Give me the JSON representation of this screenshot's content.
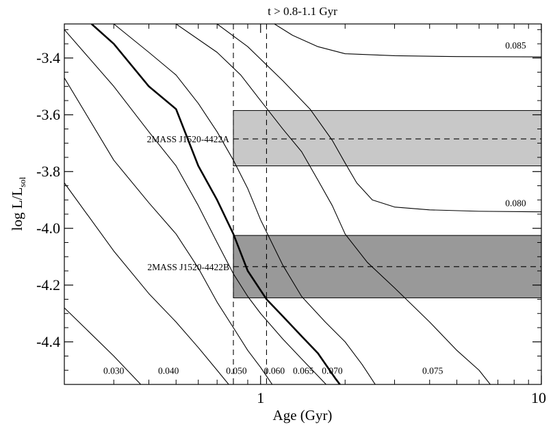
{
  "chart_data": {
    "type": "line",
    "title": "t > 0.8-1.1 Gyr",
    "xlabel": "Age (Gyr)",
    "ylabel": "log L/L",
    "ylabel_sub": "sol",
    "x_scale": "log",
    "xlim": [
      0.2,
      10
    ],
    "ylim": [
      -4.55,
      -3.28
    ],
    "x_major_ticks": [
      {
        "value": 1,
        "label": "1"
      },
      {
        "value": 10,
        "label": "10"
      }
    ],
    "y_ticks": [
      {
        "value": -3.4,
        "label": "-3.4"
      },
      {
        "value": -3.6,
        "label": "-3.6"
      },
      {
        "value": -3.8,
        "label": "-3.8"
      },
      {
        "value": -4.0,
        "label": "-4.0"
      },
      {
        "value": -4.2,
        "label": "-4.2"
      },
      {
        "value": -4.4,
        "label": "-4.4"
      }
    ],
    "grid": false,
    "age_limits": [
      0.8,
      1.05
    ],
    "objects": [
      {
        "name": "2MASS J1520-4422A",
        "logL": -3.685,
        "logL_min": -3.78,
        "logL_max": -3.585,
        "fill": "#c8c8c8"
      },
      {
        "name": "2MASS J1520-4422B",
        "logL": -4.135,
        "logL_min": -4.245,
        "logL_max": -4.025,
        "fill": "#999999"
      }
    ],
    "tracks": [
      {
        "label": "0.030",
        "bold": false,
        "label_at": [
          0.3,
          -4.5
        ],
        "points": [
          [
            0.2,
            -4.28
          ],
          [
            0.3,
            -4.45
          ],
          [
            0.4,
            -4.58
          ]
        ]
      },
      {
        "label": "0.040",
        "bold": false,
        "label_at": [
          0.47,
          -4.5
        ],
        "points": [
          [
            0.2,
            -3.84
          ],
          [
            0.3,
            -4.08
          ],
          [
            0.4,
            -4.23
          ],
          [
            0.5,
            -4.33
          ],
          [
            0.6,
            -4.42
          ],
          [
            0.7,
            -4.5
          ],
          [
            0.8,
            -4.57
          ]
        ]
      },
      {
        "label": "0.050",
        "bold": false,
        "label_at": [
          0.82,
          -4.5
        ],
        "points": [
          [
            0.2,
            -3.47
          ],
          [
            0.3,
            -3.76
          ],
          [
            0.4,
            -3.91
          ],
          [
            0.5,
            -4.02
          ],
          [
            0.6,
            -4.14
          ],
          [
            0.7,
            -4.26
          ],
          [
            0.8,
            -4.35
          ],
          [
            0.9,
            -4.43
          ],
          [
            1.0,
            -4.49
          ],
          [
            1.1,
            -4.55
          ],
          [
            1.15,
            -4.58
          ]
        ]
      },
      {
        "label": "0.060",
        "bold": false,
        "label_at": [
          1.12,
          -4.5
        ],
        "points": [
          [
            0.2,
            -3.3
          ],
          [
            0.3,
            -3.5
          ],
          [
            0.4,
            -3.66
          ],
          [
            0.5,
            -3.78
          ],
          [
            0.6,
            -3.92
          ],
          [
            0.7,
            -4.05
          ],
          [
            0.8,
            -4.16
          ],
          [
            0.9,
            -4.24
          ],
          [
            1.0,
            -4.3
          ],
          [
            1.2,
            -4.39
          ],
          [
            1.4,
            -4.46
          ],
          [
            1.6,
            -4.52
          ],
          [
            1.75,
            -4.56
          ]
        ]
      },
      {
        "label": "0.065",
        "bold": true,
        "label_at": [
          1.42,
          -4.5
        ],
        "points": [
          [
            0.25,
            -3.28
          ],
          [
            0.3,
            -3.35
          ],
          [
            0.4,
            -3.5
          ],
          [
            0.5,
            -3.58
          ],
          [
            0.6,
            -3.78
          ],
          [
            0.7,
            -3.9
          ],
          [
            0.8,
            -4.02
          ],
          [
            0.9,
            -4.15
          ],
          [
            1.05,
            -4.25
          ],
          [
            1.2,
            -4.31
          ],
          [
            1.4,
            -4.38
          ],
          [
            1.6,
            -4.44
          ],
          [
            1.85,
            -4.53
          ],
          [
            1.95,
            -4.56
          ]
        ]
      },
      {
        "label": "0.070",
        "bold": false,
        "label_at": [
          1.8,
          -4.5
        ],
        "points": [
          [
            0.3,
            -3.28
          ],
          [
            0.4,
            -3.38
          ],
          [
            0.5,
            -3.46
          ],
          [
            0.6,
            -3.56
          ],
          [
            0.7,
            -3.66
          ],
          [
            0.8,
            -3.76
          ],
          [
            0.9,
            -3.86
          ],
          [
            1.0,
            -3.97
          ],
          [
            1.2,
            -4.13
          ],
          [
            1.4,
            -4.24
          ],
          [
            1.7,
            -4.33
          ],
          [
            2.0,
            -4.4
          ],
          [
            2.3,
            -4.48
          ],
          [
            2.6,
            -4.56
          ]
        ]
      },
      {
        "label": "0.075",
        "bold": false,
        "label_at": [
          4.1,
          -4.5
        ],
        "points": [
          [
            0.5,
            -3.28
          ],
          [
            0.7,
            -3.38
          ],
          [
            0.85,
            -3.46
          ],
          [
            1.0,
            -3.55
          ],
          [
            1.2,
            -3.65
          ],
          [
            1.4,
            -3.73
          ],
          [
            1.6,
            -3.83
          ],
          [
            1.8,
            -3.92
          ],
          [
            2.0,
            -4.02
          ],
          [
            2.4,
            -4.12
          ],
          [
            3.0,
            -4.21
          ],
          [
            4.0,
            -4.33
          ],
          [
            5.0,
            -4.43
          ],
          [
            6.0,
            -4.5
          ],
          [
            6.7,
            -4.56
          ]
        ]
      },
      {
        "label": "0.080",
        "bold": false,
        "label_at": [
          8.1,
          -3.91
        ],
        "points": [
          [
            0.7,
            -3.28
          ],
          [
            0.9,
            -3.36
          ],
          [
            1.2,
            -3.48
          ],
          [
            1.5,
            -3.58
          ],
          [
            1.8,
            -3.69
          ],
          [
            2.0,
            -3.77
          ],
          [
            2.2,
            -3.84
          ],
          [
            2.5,
            -3.9
          ],
          [
            3.0,
            -3.925
          ],
          [
            4.0,
            -3.935
          ],
          [
            6.0,
            -3.94
          ],
          [
            10,
            -3.942
          ]
        ]
      },
      {
        "label": "0.085",
        "bold": false,
        "label_at": [
          8.1,
          -3.355
        ],
        "points": [
          [
            1.12,
            -3.28
          ],
          [
            1.3,
            -3.32
          ],
          [
            1.6,
            -3.36
          ],
          [
            2.0,
            -3.385
          ],
          [
            3.0,
            -3.392
          ],
          [
            5.0,
            -3.395
          ],
          [
            10,
            -3.396
          ]
        ]
      }
    ]
  }
}
